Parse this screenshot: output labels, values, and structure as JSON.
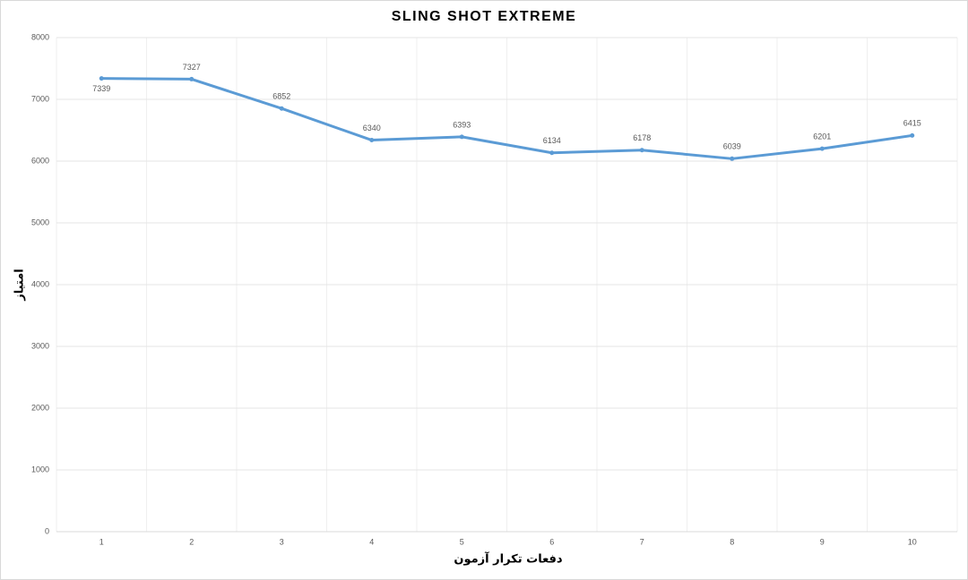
{
  "chart_data": {
    "type": "line",
    "title": "SLING SHOT EXTREME",
    "x_label": "دفعات تکرار آزمون",
    "y_label": "امتیاز",
    "categories": [
      "1",
      "2",
      "3",
      "4",
      "5",
      "6",
      "7",
      "8",
      "9",
      "10"
    ],
    "values": [
      7339,
      7327,
      6852,
      6340,
      6393,
      6134,
      6178,
      6039,
      6201,
      6415
    ],
    "color": "#5b9bd5",
    "ylim": [
      0,
      8000
    ],
    "yticks": [
      0,
      1000,
      2000,
      3000,
      4000,
      5000,
      6000,
      7000,
      8000
    ],
    "grid": true
  }
}
